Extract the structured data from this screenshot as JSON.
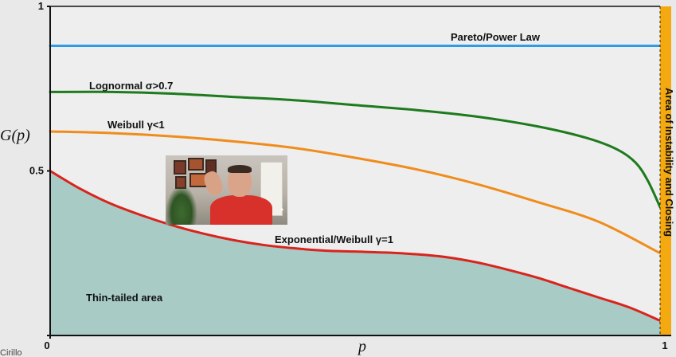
{
  "chart_data": {
    "type": "line",
    "title": "",
    "xlabel": "p",
    "ylabel": "G(p)",
    "xlim": [
      0,
      1
    ],
    "ylim": [
      0,
      1
    ],
    "x_ticks": [
      {
        "value": 0,
        "label": "0"
      },
      {
        "value": 1,
        "label": "1"
      }
    ],
    "y_ticks": [
      {
        "value": 0,
        "label": "0"
      },
      {
        "value": 0.5,
        "label": "0.5"
      },
      {
        "value": 1,
        "label": "1"
      }
    ],
    "grid": false,
    "series": [
      {
        "name": "Pareto/Power Law",
        "color": "#2f9be6",
        "x": [
          0,
          1
        ],
        "y": [
          0.88,
          0.88
        ]
      },
      {
        "name": "Lognormal σ>0.7",
        "color": "#1d7a1d",
        "x": [
          0,
          0.1,
          0.2,
          0.3,
          0.4,
          0.5,
          0.6,
          0.7,
          0.8,
          0.88,
          0.93,
          0.96,
          0.98,
          1.0
        ],
        "y": [
          0.74,
          0.74,
          0.735,
          0.725,
          0.715,
          0.7,
          0.685,
          0.665,
          0.635,
          0.6,
          0.565,
          0.525,
          0.47,
          0.39
        ]
      },
      {
        "name": "Weibull γ<1",
        "color": "#f08c1c",
        "x": [
          0,
          0.1,
          0.2,
          0.3,
          0.4,
          0.5,
          0.6,
          0.7,
          0.8,
          0.9,
          1.0
        ],
        "y": [
          0.62,
          0.615,
          0.605,
          0.59,
          0.57,
          0.54,
          0.505,
          0.46,
          0.405,
          0.345,
          0.25
        ]
      },
      {
        "name": "Exponential/Weibull γ=1",
        "color": "#d8241d",
        "x": [
          0,
          0.05,
          0.1,
          0.15,
          0.2,
          0.25,
          0.3,
          0.35,
          0.4,
          0.45,
          0.5,
          0.55,
          0.6,
          0.65,
          0.7,
          0.75,
          0.8,
          0.85,
          0.9,
          0.95,
          1.0
        ],
        "y": [
          0.5,
          0.445,
          0.4,
          0.365,
          0.335,
          0.31,
          0.29,
          0.275,
          0.265,
          0.258,
          0.255,
          0.252,
          0.247,
          0.238,
          0.222,
          0.2,
          0.175,
          0.145,
          0.115,
          0.085,
          0.045
        ]
      }
    ],
    "annotations": {
      "thin_tailed": "Thin-tailed area",
      "instability": "Area of Instability and Closing"
    },
    "credit": "Cirillo"
  },
  "colors": {
    "background": "#e9e9e9",
    "plot_background": "#eeeeee",
    "thin_area_fill": "#a9cbc6",
    "instability_band": "#f5a911"
  }
}
